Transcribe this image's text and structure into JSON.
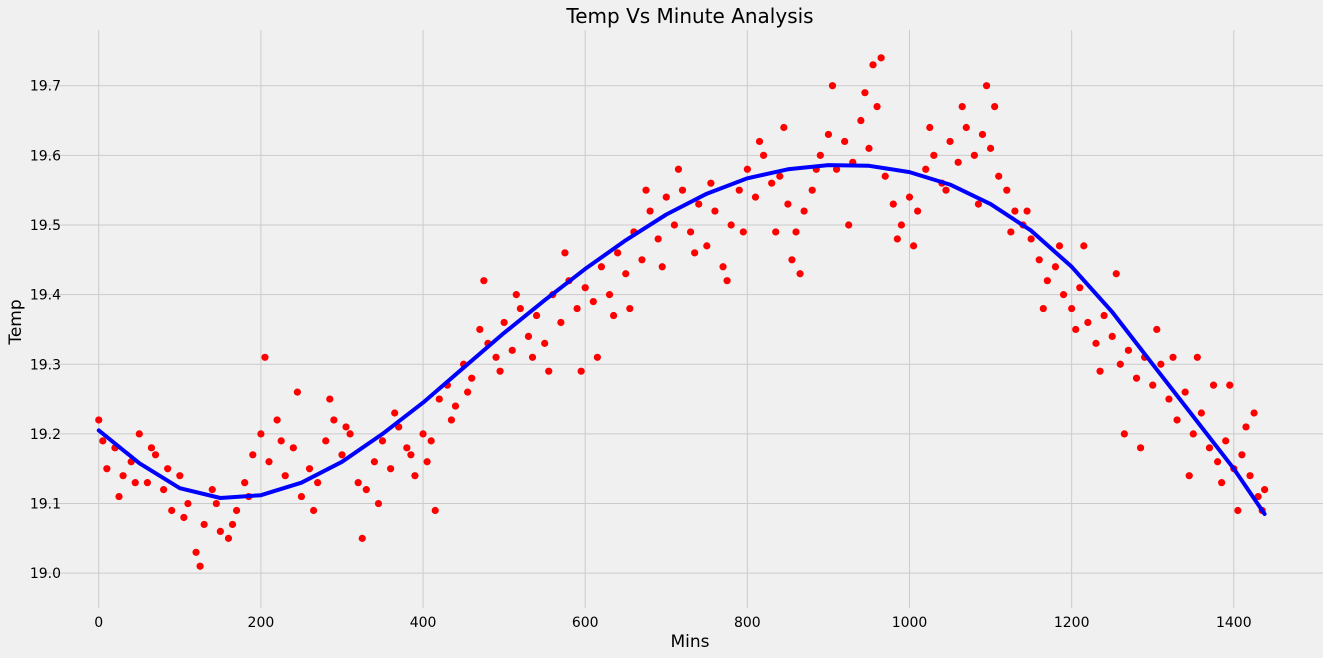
{
  "chart_data": {
    "type": "scatter",
    "title": "Temp Vs Minute Analysis",
    "xlabel": "Mins",
    "ylabel": "Temp",
    "xlim": [
      -70,
      1510
    ],
    "ylim": [
      18.95,
      19.78
    ],
    "x_ticks": [
      0,
      200,
      400,
      600,
      800,
      1000,
      1200,
      1400
    ],
    "y_ticks": [
      19.0,
      19.1,
      19.2,
      19.3,
      19.4,
      19.5,
      19.6,
      19.7
    ],
    "x_tick_labels": [
      "0",
      "200",
      "400",
      "600",
      "800",
      "1000",
      "1200",
      "1400"
    ],
    "y_tick_labels": [
      "19.0",
      "19.1",
      "19.2",
      "19.3",
      "19.4",
      "19.5",
      "19.6",
      "19.7"
    ],
    "grid": true,
    "legend": "none",
    "series": [
      {
        "kind": "scatter",
        "color": "#ff0000",
        "points": [
          [
            0,
            19.22
          ],
          [
            10,
            19.15
          ],
          [
            20,
            19.18
          ],
          [
            30,
            19.14
          ],
          [
            40,
            19.16
          ],
          [
            50,
            19.2
          ],
          [
            60,
            19.13
          ],
          [
            70,
            19.17
          ],
          [
            80,
            19.12
          ],
          [
            90,
            19.09
          ],
          [
            100,
            19.14
          ],
          [
            110,
            19.1
          ],
          [
            120,
            19.03
          ],
          [
            130,
            19.07
          ],
          [
            140,
            19.12
          ],
          [
            150,
            19.06
          ],
          [
            160,
            19.05
          ],
          [
            170,
            19.09
          ],
          [
            180,
            19.13
          ],
          [
            190,
            19.17
          ],
          [
            200,
            19.2
          ],
          [
            210,
            19.16
          ],
          [
            220,
            19.22
          ],
          [
            230,
            19.14
          ],
          [
            240,
            19.18
          ],
          [
            250,
            19.11
          ],
          [
            260,
            19.15
          ],
          [
            270,
            19.13
          ],
          [
            280,
            19.19
          ],
          [
            290,
            19.22
          ],
          [
            300,
            19.17
          ],
          [
            310,
            19.2
          ],
          [
            320,
            19.13
          ],
          [
            330,
            19.12
          ],
          [
            340,
            19.16
          ],
          [
            350,
            19.19
          ],
          [
            360,
            19.15
          ],
          [
            370,
            19.21
          ],
          [
            380,
            19.18
          ],
          [
            390,
            19.14
          ],
          [
            400,
            19.2
          ],
          [
            410,
            19.19
          ],
          [
            420,
            19.25
          ],
          [
            430,
            19.27
          ],
          [
            440,
            19.24
          ],
          [
            450,
            19.3
          ],
          [
            460,
            19.28
          ],
          [
            470,
            19.35
          ],
          [
            480,
            19.33
          ],
          [
            490,
            19.31
          ],
          [
            500,
            19.36
          ],
          [
            510,
            19.32
          ],
          [
            520,
            19.38
          ],
          [
            530,
            19.34
          ],
          [
            540,
            19.37
          ],
          [
            550,
            19.33
          ],
          [
            560,
            19.4
          ],
          [
            570,
            19.36
          ],
          [
            580,
            19.42
          ],
          [
            590,
            19.38
          ],
          [
            600,
            19.41
          ],
          [
            610,
            19.39
          ],
          [
            620,
            19.44
          ],
          [
            630,
            19.4
          ],
          [
            640,
            19.46
          ],
          [
            650,
            19.43
          ],
          [
            660,
            19.49
          ],
          [
            670,
            19.45
          ],
          [
            680,
            19.52
          ],
          [
            690,
            19.48
          ],
          [
            700,
            19.54
          ],
          [
            710,
            19.5
          ],
          [
            720,
            19.55
          ],
          [
            730,
            19.49
          ],
          [
            740,
            19.53
          ],
          [
            750,
            19.47
          ],
          [
            760,
            19.52
          ],
          [
            770,
            19.44
          ],
          [
            780,
            19.5
          ],
          [
            790,
            19.55
          ],
          [
            800,
            19.58
          ],
          [
            810,
            19.54
          ],
          [
            820,
            19.6
          ],
          [
            830,
            19.56
          ],
          [
            840,
            19.57
          ],
          [
            850,
            19.53
          ],
          [
            860,
            19.49
          ],
          [
            870,
            19.52
          ],
          [
            880,
            19.55
          ],
          [
            890,
            19.6
          ],
          [
            900,
            19.63
          ],
          [
            910,
            19.58
          ],
          [
            920,
            19.62
          ],
          [
            930,
            19.59
          ],
          [
            940,
            19.65
          ],
          [
            950,
            19.61
          ],
          [
            960,
            19.67
          ],
          [
            970,
            19.57
          ],
          [
            980,
            19.53
          ],
          [
            990,
            19.5
          ],
          [
            1000,
            19.54
          ],
          [
            1010,
            19.52
          ],
          [
            1020,
            19.58
          ],
          [
            1030,
            19.6
          ],
          [
            1040,
            19.56
          ],
          [
            1050,
            19.62
          ],
          [
            1060,
            19.59
          ],
          [
            1070,
            19.64
          ],
          [
            1080,
            19.6
          ],
          [
            1090,
            19.63
          ],
          [
            1100,
            19.61
          ],
          [
            1110,
            19.57
          ],
          [
            1120,
            19.55
          ],
          [
            1130,
            19.52
          ],
          [
            1140,
            19.5
          ],
          [
            1150,
            19.48
          ],
          [
            1160,
            19.45
          ],
          [
            1170,
            19.42
          ],
          [
            1180,
            19.44
          ],
          [
            1190,
            19.4
          ],
          [
            1200,
            19.38
          ],
          [
            1210,
            19.41
          ],
          [
            1220,
            19.36
          ],
          [
            1230,
            19.33
          ],
          [
            1240,
            19.37
          ],
          [
            1250,
            19.34
          ],
          [
            1260,
            19.3
          ],
          [
            1270,
            19.32
          ],
          [
            1280,
            19.28
          ],
          [
            1290,
            19.31
          ],
          [
            1300,
            19.27
          ],
          [
            1310,
            19.3
          ],
          [
            1320,
            19.25
          ],
          [
            1330,
            19.22
          ],
          [
            1340,
            19.26
          ],
          [
            1350,
            19.2
          ],
          [
            1360,
            19.23
          ],
          [
            1370,
            19.18
          ],
          [
            1380,
            19.16
          ],
          [
            1390,
            19.19
          ],
          [
            1400,
            19.15
          ],
          [
            1410,
            19.17
          ],
          [
            1420,
            19.14
          ],
          [
            1430,
            19.11
          ],
          [
            1435,
            19.09
          ],
          [
            5,
            19.19
          ],
          [
            25,
            19.11
          ],
          [
            45,
            19.13
          ],
          [
            65,
            19.18
          ],
          [
            85,
            19.15
          ],
          [
            105,
            19.08
          ],
          [
            125,
            19.01
          ],
          [
            145,
            19.1
          ],
          [
            165,
            19.07
          ],
          [
            185,
            19.11
          ],
          [
            205,
            19.31
          ],
          [
            225,
            19.19
          ],
          [
            245,
            19.26
          ],
          [
            265,
            19.09
          ],
          [
            285,
            19.25
          ],
          [
            305,
            19.21
          ],
          [
            325,
            19.05
          ],
          [
            345,
            19.1
          ],
          [
            365,
            19.23
          ],
          [
            385,
            19.17
          ],
          [
            405,
            19.16
          ],
          [
            415,
            19.09
          ],
          [
            435,
            19.22
          ],
          [
            455,
            19.26
          ],
          [
            475,
            19.42
          ],
          [
            495,
            19.29
          ],
          [
            515,
            19.4
          ],
          [
            535,
            19.31
          ],
          [
            555,
            19.29
          ],
          [
            575,
            19.46
          ],
          [
            595,
            19.29
          ],
          [
            615,
            19.31
          ],
          [
            635,
            19.37
          ],
          [
            655,
            19.38
          ],
          [
            675,
            19.55
          ],
          [
            695,
            19.44
          ],
          [
            715,
            19.58
          ],
          [
            735,
            19.46
          ],
          [
            755,
            19.56
          ],
          [
            775,
            19.42
          ],
          [
            795,
            19.49
          ],
          [
            815,
            19.62
          ],
          [
            835,
            19.49
          ],
          [
            845,
            19.64
          ],
          [
            855,
            19.45
          ],
          [
            865,
            19.43
          ],
          [
            885,
            19.58
          ],
          [
            905,
            19.7
          ],
          [
            925,
            19.5
          ],
          [
            945,
            19.69
          ],
          [
            955,
            19.73
          ],
          [
            965,
            19.74
          ],
          [
            985,
            19.48
          ],
          [
            1005,
            19.47
          ],
          [
            1025,
            19.64
          ],
          [
            1045,
            19.55
          ],
          [
            1065,
            19.67
          ],
          [
            1085,
            19.53
          ],
          [
            1095,
            19.7
          ],
          [
            1105,
            19.67
          ],
          [
            1125,
            19.49
          ],
          [
            1145,
            19.52
          ],
          [
            1165,
            19.38
          ],
          [
            1185,
            19.47
          ],
          [
            1205,
            19.35
          ],
          [
            1215,
            19.47
          ],
          [
            1235,
            19.29
          ],
          [
            1255,
            19.43
          ],
          [
            1265,
            19.2
          ],
          [
            1285,
            19.18
          ],
          [
            1305,
            19.35
          ],
          [
            1325,
            19.31
          ],
          [
            1345,
            19.14
          ],
          [
            1355,
            19.31
          ],
          [
            1375,
            19.27
          ],
          [
            1385,
            19.13
          ],
          [
            1395,
            19.27
          ],
          [
            1405,
            19.09
          ],
          [
            1415,
            19.21
          ],
          [
            1425,
            19.23
          ],
          [
            1438,
            19.12
          ]
        ]
      },
      {
        "kind": "line",
        "color": "#0000ff",
        "points": [
          [
            0,
            19.205
          ],
          [
            50,
            19.158
          ],
          [
            100,
            19.122
          ],
          [
            150,
            19.108
          ],
          [
            200,
            19.112
          ],
          [
            250,
            19.13
          ],
          [
            300,
            19.16
          ],
          [
            350,
            19.2
          ],
          [
            400,
            19.245
          ],
          [
            450,
            19.295
          ],
          [
            500,
            19.345
          ],
          [
            550,
            19.392
          ],
          [
            600,
            19.437
          ],
          [
            650,
            19.478
          ],
          [
            700,
            19.515
          ],
          [
            750,
            19.545
          ],
          [
            800,
            19.567
          ],
          [
            850,
            19.58
          ],
          [
            900,
            19.586
          ],
          [
            950,
            19.585
          ],
          [
            1000,
            19.576
          ],
          [
            1050,
            19.558
          ],
          [
            1100,
            19.53
          ],
          [
            1150,
            19.492
          ],
          [
            1200,
            19.44
          ],
          [
            1250,
            19.375
          ],
          [
            1300,
            19.3
          ],
          [
            1350,
            19.225
          ],
          [
            1400,
            19.15
          ],
          [
            1438,
            19.085
          ]
        ]
      }
    ]
  }
}
